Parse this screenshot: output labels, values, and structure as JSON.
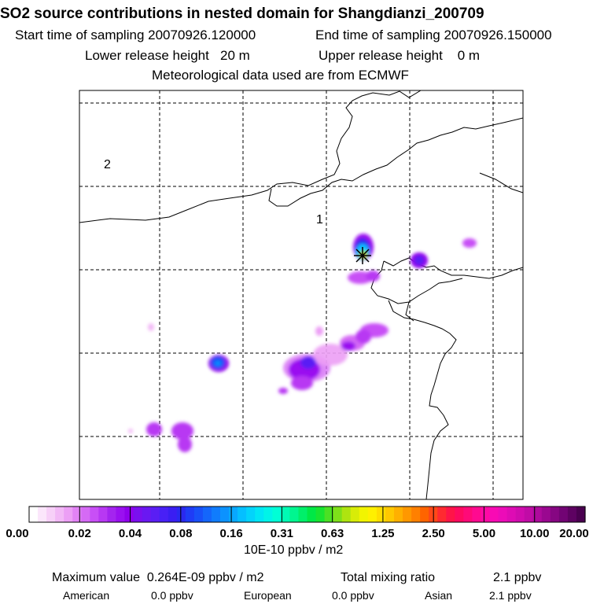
{
  "header": {
    "title": "SO2 source contributions in nested domain for Shangdianzi_200709",
    "start_label": "Start time of sampling 20070926.120000",
    "end_label": "End time of sampling 20070926.150000",
    "lower_label": "Lower release height   20 m",
    "upper_label": "Upper release height    0 m",
    "met_label": "Meteorological data used are from ECMWF"
  },
  "chart_data": {
    "type": "heatmap",
    "title": "SO2 source contributions in nested domain for Shangdianzi_200709",
    "region_labels": [
      "1",
      "2"
    ],
    "receptor_marker": "star",
    "colorbar": {
      "ticks": [
        "0.00",
        "0.02",
        "0.04",
        "0.08",
        "0.16",
        "0.31",
        "0.63",
        "1.25",
        "2.50",
        "5.00",
        "10.00",
        "20.00"
      ],
      "unit_label": "10E-10 ppbv / m2",
      "colors": [
        "#ffffff",
        "#fbe6fb",
        "#f7d0f8",
        "#f2b8f6",
        "#ec9ff5",
        "#e283f5",
        "#d56af5",
        "#c84ff6",
        "#b838f3",
        "#a424ef",
        "#9a10f0",
        "#8f00ec",
        "#7a10ee",
        "#6a18f2",
        "#5a1ef4",
        "#4820f6",
        "#3a1ef2",
        "#2a28f0",
        "#1f3cf6",
        "#1850f8",
        "#1466fb",
        "#107cfd",
        "#0c92fe",
        "#08a8ff",
        "#05bfff",
        "#03d3fb",
        "#00e6f5",
        "#00f4e8",
        "#00ffd6",
        "#00fbb4",
        "#00f690",
        "#00ef6a",
        "#00e846",
        "#18e430",
        "#4be024",
        "#7ee01a",
        "#aee410",
        "#d8ec08",
        "#f2f400",
        "#fff000",
        "#ffde00",
        "#ffc800",
        "#ffb000",
        "#ff9800",
        "#ff8000",
        "#ff6400",
        "#ff4818",
        "#ff2a30",
        "#ff1448",
        "#ff0a60",
        "#ff0a78",
        "#ff0a90",
        "#ff0aa4",
        "#f80ab4",
        "#ec0cb8",
        "#de0cb4",
        "#d00cae",
        "#c00ca6",
        "#ae0a9c",
        "#9a0890",
        "#860682",
        "#720474",
        "#5e0262",
        "#4a0050"
      ]
    }
  },
  "stats": {
    "max_label": "Maximum value  0.264E-09 ppbv / m2",
    "total_label": "Total mixing ratio",
    "total_value": "2.1 ppbv",
    "american_label": "American",
    "american_value": "0.0 ppbv",
    "european_label": "European",
    "european_value": "0.0 ppbv",
    "asian_label": "Asian",
    "asian_value": "2.1 ppbv"
  }
}
